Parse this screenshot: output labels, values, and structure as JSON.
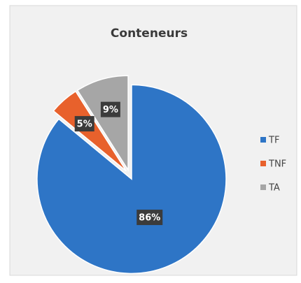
{
  "chart_data": {
    "type": "pie",
    "title": "Conteneurs",
    "categories": [
      "TF",
      "TNF",
      "TA"
    ],
    "values": [
      86,
      5,
      9
    ],
    "value_labels": [
      "86%",
      "5%",
      "9%"
    ],
    "colors": [
      "#2e75c6",
      "#e8612c",
      "#a6a6a6"
    ],
    "legend": "right"
  }
}
